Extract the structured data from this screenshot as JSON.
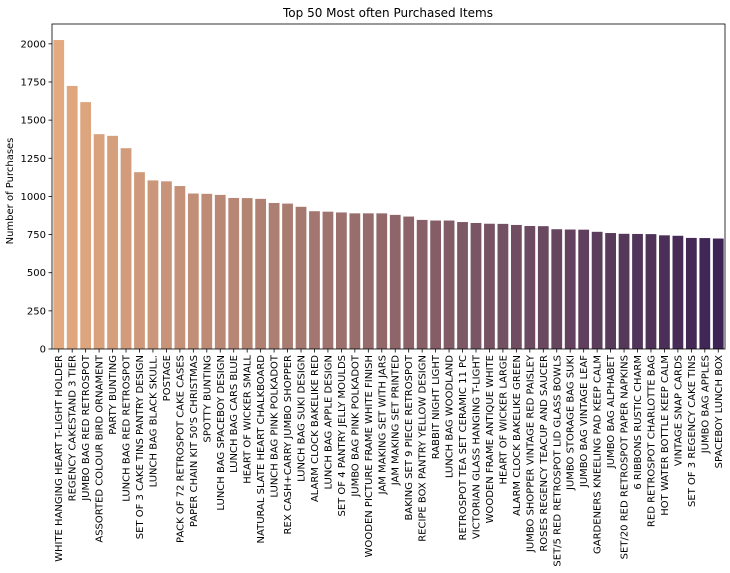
{
  "chart_data": {
    "type": "bar",
    "title": "Top 50 Most often Purchased Items",
    "xlabel": "",
    "ylabel": "Number of Purchases",
    "ylim": [
      0,
      2130
    ],
    "yticks": [
      0,
      250,
      500,
      750,
      1000,
      1250,
      1500,
      1750,
      2000
    ],
    "grid": false,
    "legend": "none",
    "palette": {
      "start": "#e3aa80",
      "end": "#3d2454"
    },
    "categories": [
      "WHITE HANGING HEART T-LIGHT HOLDER",
      "REGENCY CAKESTAND 3 TIER",
      "JUMBO BAG RED RETROSPOT",
      "ASSORTED COLOUR BIRD ORNAMENT",
      "PARTY BUNTING",
      "LUNCH BAG RED RETROSPOT",
      "SET OF 3 CAKE TINS PANTRY DESIGN",
      "LUNCH BAG  BLACK SKULL.",
      "POSTAGE",
      "PACK OF 72 RETROSPOT CAKE CASES",
      "PAPER CHAIN KIT 50'S CHRISTMAS",
      "SPOTTY BUNTING",
      "LUNCH BAG SPACEBOY DESIGN",
      "LUNCH BAG CARS BLUE",
      "HEART OF WICKER SMALL",
      "NATURAL SLATE HEART CHALKBOARD",
      "LUNCH BAG PINK POLKADOT",
      "REX CASH+CARRY JUMBO SHOPPER",
      "LUNCH BAG SUKI DESIGN",
      "ALARM CLOCK BAKELIKE RED",
      "LUNCH BAG APPLE DESIGN",
      "SET OF 4 PANTRY JELLY MOULDS",
      "JUMBO BAG PINK POLKADOT",
      "WOODEN PICTURE FRAME WHITE FINISH",
      "JAM MAKING SET WITH JARS",
      "JAM MAKING SET PRINTED",
      "BAKING SET 9 PIECE RETROSPOT",
      "RECIPE BOX PANTRY YELLOW DESIGN",
      "RABBIT NIGHT LIGHT",
      "LUNCH BAG WOODLAND",
      "RETROSPOT TEA SET CERAMIC 11 PC",
      "VICTORIAN GLASS HANGING T-LIGHT",
      "WOODEN FRAME ANTIQUE WHITE",
      "HEART OF WICKER LARGE",
      "ALARM CLOCK BAKELIKE GREEN",
      "JUMBO SHOPPER VINTAGE RED PAISLEY",
      "ROSES REGENCY TEACUP AND SAUCER",
      "SET/5 RED RETROSPOT LID GLASS BOWLS",
      "JUMBO STORAGE BAG SUKI",
      "JUMBO BAG VINTAGE LEAF",
      "GARDENERS KNEELING PAD KEEP CALM",
      "JUMBO BAG ALPHABET",
      "SET/20 RED RETROSPOT PAPER NAPKINS",
      "6 RIBBONS RUSTIC CHARM",
      "RED RETROSPOT CHARLOTTE BAG",
      "HOT WATER BOTTLE KEEP CALM",
      "VINTAGE SNAP CARDS",
      "SET OF 3 REGENCY CAKE TINS",
      "JUMBO BAG APPLES",
      "SPACEBOY LUNCH BOX"
    ],
    "values": [
      2025,
      1724,
      1618,
      1408,
      1397,
      1316,
      1159,
      1105,
      1099,
      1068,
      1019,
      1017,
      1010,
      990,
      989,
      984,
      957,
      953,
      932,
      903,
      900,
      895,
      889,
      889,
      889,
      879,
      868,
      846,
      842,
      842,
      832,
      826,
      821,
      820,
      813,
      806,
      805,
      785,
      783,
      782,
      768,
      760,
      755,
      754,
      753,
      745,
      742,
      728,
      727,
      724
    ]
  }
}
